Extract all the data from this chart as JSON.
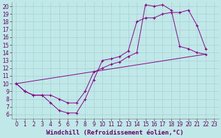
{
  "xlabel": "Windchill (Refroidissement éolien,°C)",
  "bg_color": "#c0e8e8",
  "line_color": "#880088",
  "xlim": [
    -0.5,
    23.5
  ],
  "ylim": [
    5.5,
    20.5
  ],
  "xticks": [
    0,
    1,
    2,
    3,
    4,
    5,
    6,
    7,
    8,
    9,
    10,
    11,
    12,
    13,
    14,
    15,
    16,
    17,
    18,
    19,
    20,
    21,
    22,
    23
  ],
  "yticks": [
    6,
    7,
    8,
    9,
    10,
    11,
    12,
    13,
    14,
    15,
    16,
    17,
    18,
    19,
    20
  ],
  "line1_x": [
    0,
    1,
    2,
    3,
    4,
    5,
    6,
    7,
    8,
    9,
    10,
    11,
    12,
    13,
    14,
    15,
    16,
    17,
    18,
    19,
    20,
    21,
    22
  ],
  "line1_y": [
    10,
    9,
    8.5,
    8.5,
    7.5,
    6.5,
    6.2,
    6.2,
    8.0,
    10.5,
    13.0,
    13.2,
    13.5,
    14.2,
    18.0,
    18.5,
    18.5,
    19.0,
    19.2,
    19.2,
    19.5,
    17.5,
    14.5
  ],
  "line2_x": [
    0,
    1,
    2,
    3,
    4,
    5,
    6,
    7,
    8,
    9,
    10,
    11,
    12,
    13,
    14,
    15,
    16,
    17,
    18,
    19,
    20,
    21,
    22
  ],
  "line2_y": [
    10,
    9,
    8.5,
    8.5,
    8.5,
    8.0,
    7.5,
    7.5,
    9.0,
    11.5,
    12.0,
    12.5,
    12.8,
    13.5,
    14.0,
    20.2,
    20.0,
    20.2,
    19.5,
    14.8,
    14.5,
    14.0,
    13.8
  ],
  "line3_x": [
    0,
    22
  ],
  "line3_y": [
    10,
    13.8
  ],
  "grid_color": "#a0cccc",
  "tick_fontsize": 5.5,
  "label_fontsize": 6.5
}
